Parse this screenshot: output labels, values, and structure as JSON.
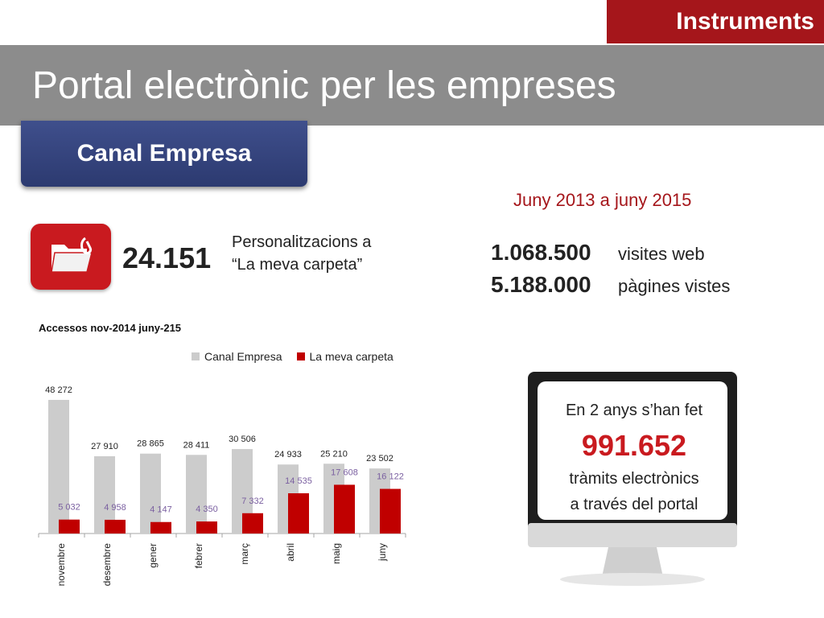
{
  "header": {
    "section_tab": "Instruments",
    "title": "Portal electrònic per les empreses",
    "logo_text": "Canal Empresa"
  },
  "period": "Juny 2013 a juny 2015",
  "personalizations": {
    "value": "24.151",
    "label": "Personalitzacions  a\n“La meva carpeta”"
  },
  "stats": [
    {
      "value": "1.068.500",
      "label": "visites web"
    },
    {
      "value": "5.188.000",
      "label": "pàgines vistes"
    }
  ],
  "monitor": {
    "line1": "En 2 anys s’han fet",
    "number": "991.652",
    "line2": "tràmits electrònics",
    "line3": "a través del portal"
  },
  "colors": {
    "accent_red": "#a5161b",
    "bar_red": "#c00000",
    "bar_gray": "#cccccc",
    "banner_blue": "#2c3a70",
    "label_purple": "#7a5fa0"
  },
  "chart_data": {
    "type": "bar",
    "title": "Accessos nov-2014 juny-215",
    "categories": [
      "novembre",
      "desembre",
      "gener",
      "febrer",
      "març",
      "abril",
      "maig",
      "juny"
    ],
    "series": [
      {
        "name": "Canal Empresa",
        "values": [
          48272,
          27910,
          28865,
          28411,
          30506,
          24933,
          25210,
          23502
        ],
        "labels": [
          "48 272",
          "27 910",
          "28 865",
          "28 411",
          "30 506",
          "24 933",
          "25 210",
          "23 502"
        ]
      },
      {
        "name": "La meva carpeta",
        "values": [
          5032,
          4958,
          4147,
          4350,
          7332,
          14535,
          17608,
          16122
        ],
        "labels": [
          "5 032",
          "4 958",
          "4 147",
          "4 350",
          "7 332",
          "14 535",
          "17 608",
          "16 122"
        ]
      }
    ],
    "ylim": [
      0,
      50000
    ],
    "grid": false,
    "legend": "top"
  }
}
